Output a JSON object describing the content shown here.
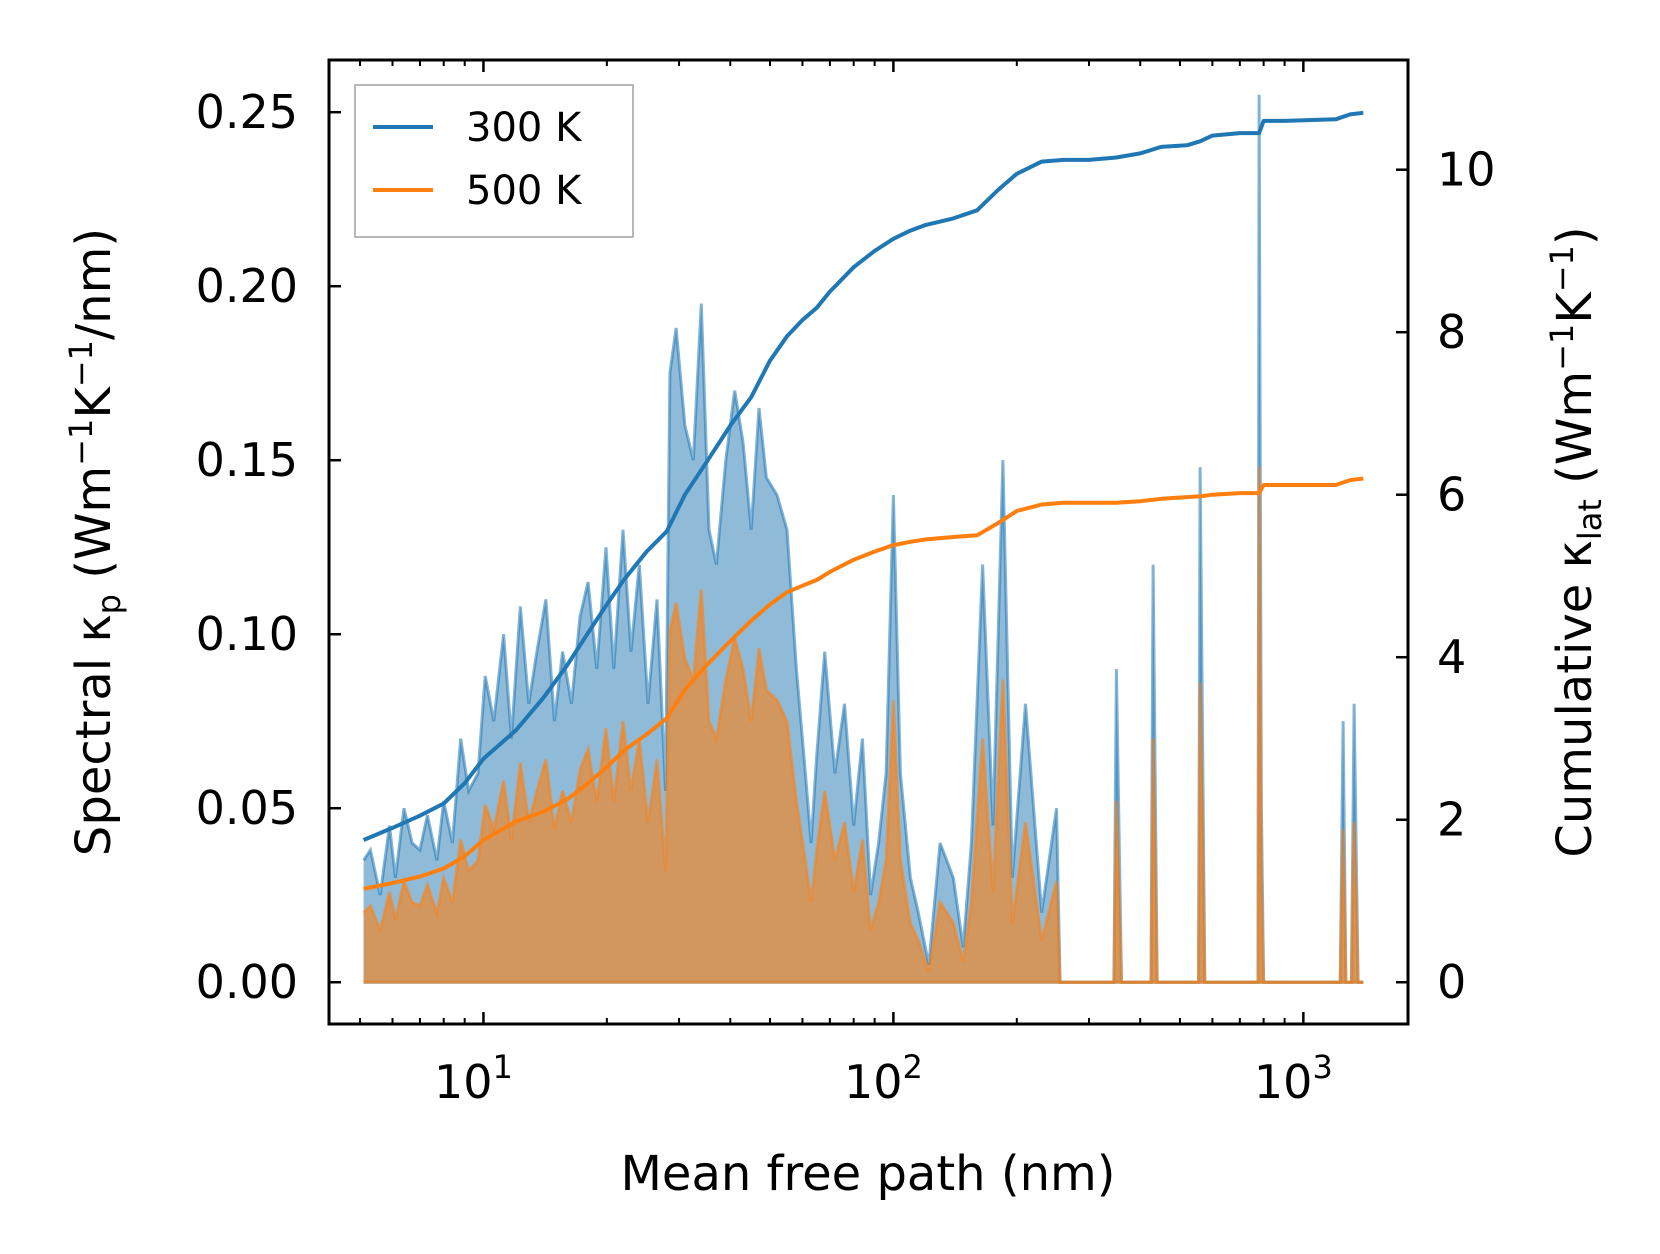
{
  "chart_data": {
    "type": "line",
    "xscale": "log",
    "xlim": [
      4.2,
      1800
    ],
    "ylim_left": [
      -0.012,
      0.265
    ],
    "ylim_right": [
      -0.514,
      11.35
    ],
    "xlabel": "Mean free path (nm)",
    "ylabel_left": {
      "prefix": "Spectral κ",
      "sub": "p",
      "units": " (Wm",
      "sup1": "−1",
      "mid": "K",
      "sup2": "−1",
      "tail": "/nm)"
    },
    "ylabel_right": {
      "prefix": "Cumulative κ",
      "sub": "lat",
      "units": " (Wm",
      "sup1": "−1",
      "mid": "K",
      "sup2": "−1",
      "tail": ")"
    },
    "x_ticks": [
      {
        "value": 10,
        "base": "10",
        "exp": "1"
      },
      {
        "value": 100,
        "base": "10",
        "exp": "2"
      },
      {
        "value": 1000,
        "base": "10",
        "exp": "3"
      }
    ],
    "y_ticks_left": [
      {
        "value": 0.0,
        "label": "0.00"
      },
      {
        "value": 0.05,
        "label": "0.05"
      },
      {
        "value": 0.1,
        "label": "0.10"
      },
      {
        "value": 0.15,
        "label": "0.15"
      },
      {
        "value": 0.2,
        "label": "0.20"
      },
      {
        "value": 0.25,
        "label": "0.25"
      }
    ],
    "y_ticks_right": [
      {
        "value": 0,
        "label": "0"
      },
      {
        "value": 2,
        "label": "2"
      },
      {
        "value": 4,
        "label": "4"
      },
      {
        "value": 6,
        "label": "6"
      },
      {
        "value": 8,
        "label": "8"
      },
      {
        "value": 10,
        "label": "10"
      }
    ],
    "legend": {
      "position": "upper-left",
      "entries": [
        {
          "label": "300 K",
          "color": "#1f77b4"
        },
        {
          "label": "500 K",
          "color": "#ff7f0e"
        }
      ]
    },
    "series": [
      {
        "name": "300 K",
        "color": "#1f77b4",
        "spectral": {
          "x": [
            5.1,
            5.3,
            5.6,
            5.9,
            6.1,
            6.4,
            6.7,
            7.0,
            7.3,
            7.7,
            8.0,
            8.4,
            8.8,
            9.2,
            9.7,
            10.1,
            10.6,
            11.2,
            11.7,
            12.3,
            12.9,
            13.5,
            14.2,
            14.9,
            15.6,
            16.4,
            17.2,
            18.0,
            18.9,
            19.9,
            20.8,
            21.9,
            22.9,
            24.0,
            25.2,
            26.5,
            27.8,
            28.5,
            29.5,
            31.0,
            32.5,
            34.0,
            35.5,
            37.0,
            39.0,
            41.0,
            43.0,
            45.0,
            47.0,
            49.0,
            52.0,
            55.0,
            58.0,
            61.0,
            63.0,
            65.0,
            68.0,
            72.0,
            76.0,
            80.0,
            84.0,
            88.0,
            92.0,
            96.0,
            100.0,
            104.0,
            110.0,
            115.0,
            122.0,
            130.0,
            140.0,
            148.0,
            155.0,
            165.0,
            175.0,
            185.0,
            195.0,
            210.0,
            230.0,
            250.0,
            255.0,
            260.0,
            345.0,
            350.0,
            360.0,
            425.0,
            430.0,
            440.0,
            555.0,
            560.0,
            575.0,
            775.0,
            780.0,
            790.0,
            800.0,
            810.0,
            1230.0,
            1250.0,
            1270.0,
            1310.0,
            1330.0,
            1360.0,
            1400.0
          ],
          "y": [
            0.035,
            0.038,
            0.025,
            0.045,
            0.03,
            0.05,
            0.04,
            0.038,
            0.048,
            0.035,
            0.052,
            0.04,
            0.07,
            0.055,
            0.06,
            0.088,
            0.075,
            0.1,
            0.07,
            0.108,
            0.08,
            0.095,
            0.11,
            0.075,
            0.095,
            0.08,
            0.105,
            0.115,
            0.09,
            0.125,
            0.09,
            0.13,
            0.095,
            0.12,
            0.08,
            0.11,
            0.055,
            0.175,
            0.188,
            0.16,
            0.15,
            0.195,
            0.13,
            0.12,
            0.15,
            0.17,
            0.155,
            0.13,
            0.165,
            0.145,
            0.14,
            0.13,
            0.09,
            0.06,
            0.04,
            0.065,
            0.095,
            0.06,
            0.08,
            0.045,
            0.07,
            0.025,
            0.04,
            0.06,
            0.14,
            0.06,
            0.03,
            0.02,
            0.005,
            0.04,
            0.03,
            0.01,
            0.04,
            0.12,
            0.045,
            0.15,
            0.03,
            0.08,
            0.02,
            0.05,
            0.0,
            0.0,
            0.0,
            0.09,
            0.0,
            0.0,
            0.12,
            0.0,
            0.0,
            0.148,
            0.0,
            0.0,
            0.255,
            0.05,
            0.0,
            0.0,
            0.0,
            0.075,
            0.0,
            0.0,
            0.08,
            0.0,
            0.0
          ]
        },
        "cumulative": {
          "x": [
            5.1,
            6.0,
            7.0,
            8.0,
            9.0,
            10.0,
            12.0,
            14.0,
            16.0,
            18.0,
            20.0,
            22.0,
            25.0,
            28.0,
            31.0,
            35.0,
            40.0,
            45.0,
            50.0,
            55.0,
            60.0,
            65.0,
            70.0,
            80.0,
            90.0,
            100.0,
            110.0,
            120.0,
            140.0,
            160.0,
            180.0,
            200.0,
            230.0,
            260.0,
            300.0,
            350.0,
            400.0,
            450.0,
            520.0,
            560.0,
            600.0,
            700.0,
            780.0,
            800.0,
            900.0,
            1200.0,
            1300.0,
            1400.0
          ],
          "y": [
            1.75,
            1.9,
            2.05,
            2.2,
            2.45,
            2.75,
            3.1,
            3.5,
            3.9,
            4.3,
            4.65,
            4.95,
            5.3,
            5.55,
            6.0,
            6.4,
            6.85,
            7.2,
            7.65,
            7.95,
            8.15,
            8.3,
            8.5,
            8.8,
            9.0,
            9.15,
            9.25,
            9.32,
            9.4,
            9.5,
            9.75,
            9.95,
            10.1,
            10.12,
            10.12,
            10.15,
            10.2,
            10.28,
            10.3,
            10.35,
            10.42,
            10.45,
            10.45,
            10.6,
            10.6,
            10.62,
            10.68,
            10.7
          ]
        }
      },
      {
        "name": "500 K",
        "color": "#ff7f0e",
        "spectral": {
          "x": [
            5.1,
            5.3,
            5.6,
            5.9,
            6.1,
            6.4,
            6.7,
            7.0,
            7.3,
            7.7,
            8.0,
            8.4,
            8.8,
            9.2,
            9.7,
            10.1,
            10.6,
            11.2,
            11.7,
            12.3,
            12.9,
            13.5,
            14.2,
            14.9,
            15.6,
            16.4,
            17.2,
            18.0,
            18.9,
            19.9,
            20.8,
            21.9,
            22.9,
            24.0,
            25.2,
            26.5,
            27.8,
            28.5,
            29.5,
            31.0,
            32.5,
            34.0,
            35.5,
            37.0,
            39.0,
            41.0,
            43.0,
            45.0,
            47.0,
            49.0,
            52.0,
            55.0,
            58.0,
            61.0,
            63.0,
            65.0,
            68.0,
            72.0,
            76.0,
            80.0,
            84.0,
            88.0,
            92.0,
            96.0,
            100.0,
            104.0,
            110.0,
            115.0,
            122.0,
            130.0,
            140.0,
            148.0,
            155.0,
            165.0,
            175.0,
            185.0,
            195.0,
            210.0,
            230.0,
            250.0,
            255.0,
            260.0,
            345.0,
            350.0,
            360.0,
            425.0,
            430.0,
            440.0,
            555.0,
            560.0,
            575.0,
            775.0,
            780.0,
            790.0,
            800.0,
            810.0,
            1230.0,
            1250.0,
            1270.0,
            1310.0,
            1330.0,
            1360.0,
            1400.0
          ],
          "y": [
            0.02,
            0.022,
            0.015,
            0.026,
            0.018,
            0.029,
            0.023,
            0.022,
            0.028,
            0.02,
            0.03,
            0.023,
            0.041,
            0.032,
            0.035,
            0.051,
            0.044,
            0.058,
            0.041,
            0.063,
            0.046,
            0.055,
            0.064,
            0.044,
            0.055,
            0.046,
            0.061,
            0.067,
            0.052,
            0.073,
            0.052,
            0.075,
            0.055,
            0.07,
            0.046,
            0.064,
            0.032,
            0.101,
            0.109,
            0.093,
            0.087,
            0.113,
            0.075,
            0.07,
            0.087,
            0.099,
            0.09,
            0.075,
            0.096,
            0.084,
            0.081,
            0.075,
            0.052,
            0.035,
            0.023,
            0.038,
            0.055,
            0.035,
            0.046,
            0.026,
            0.041,
            0.015,
            0.023,
            0.035,
            0.081,
            0.035,
            0.017,
            0.012,
            0.003,
            0.023,
            0.017,
            0.006,
            0.023,
            0.07,
            0.026,
            0.087,
            0.017,
            0.046,
            0.012,
            0.029,
            0.0,
            0.0,
            0.0,
            0.052,
            0.0,
            0.0,
            0.07,
            0.0,
            0.0,
            0.086,
            0.0,
            0.0,
            0.148,
            0.029,
            0.0,
            0.0,
            0.0,
            0.044,
            0.0,
            0.0,
            0.046,
            0.0,
            0.0
          ]
        },
        "cumulative": {
          "x": [
            5.1,
            6.0,
            7.0,
            8.0,
            9.0,
            10.0,
            12.0,
            14.0,
            16.0,
            18.0,
            20.0,
            22.0,
            25.0,
            28.0,
            31.0,
            35.0,
            40.0,
            45.0,
            50.0,
            55.0,
            60.0,
            65.0,
            70.0,
            80.0,
            90.0,
            100.0,
            110.0,
            120.0,
            140.0,
            160.0,
            180.0,
            200.0,
            230.0,
            260.0,
            300.0,
            350.0,
            400.0,
            450.0,
            520.0,
            560.0,
            600.0,
            700.0,
            780.0,
            800.0,
            900.0,
            1200.0,
            1300.0,
            1400.0
          ],
          "y": [
            1.15,
            1.22,
            1.3,
            1.4,
            1.55,
            1.75,
            1.98,
            2.1,
            2.25,
            2.45,
            2.65,
            2.85,
            3.05,
            3.25,
            3.6,
            3.9,
            4.2,
            4.45,
            4.65,
            4.8,
            4.88,
            4.95,
            5.05,
            5.2,
            5.3,
            5.38,
            5.42,
            5.45,
            5.48,
            5.5,
            5.65,
            5.8,
            5.88,
            5.9,
            5.9,
            5.9,
            5.92,
            5.95,
            5.97,
            5.98,
            6.0,
            6.02,
            6.02,
            6.12,
            6.12,
            6.12,
            6.18,
            6.2
          ]
        }
      }
    ]
  }
}
